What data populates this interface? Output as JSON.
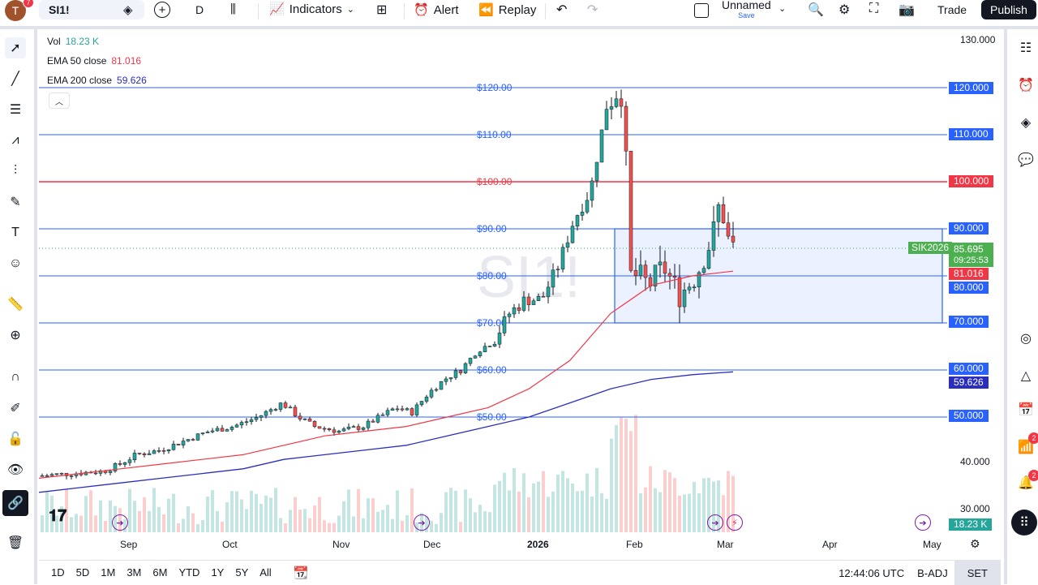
{
  "topbar": {
    "avatar_letter": "T",
    "avatar_badge": "7",
    "symbol": "SI1!",
    "interval": "D",
    "indicators_label": "Indicators",
    "alert_label": "Alert",
    "replay_label": "Replay",
    "layout_name": "Unnamed",
    "layout_save": "Save",
    "trade_label": "Trade",
    "publish_label": "Publish"
  },
  "legend": {
    "vol_label": "Vol",
    "vol_value": "18.23 K",
    "ema50_label": "EMA 50 close",
    "ema50_value": "81.016",
    "ema200_label": "EMA 200 close",
    "ema200_value": "59.626"
  },
  "watermark": "SI1!",
  "price_scale": {
    "ticks": [
      "130.000",
      "40.000",
      "30.000"
    ],
    "marked": [
      {
        "text": "120.000",
        "color": "#2962ff"
      },
      {
        "text": "110.000",
        "color": "#2962ff"
      },
      {
        "text": "100.000",
        "color": "#f23645"
      },
      {
        "text": "90.000",
        "color": "#2962ff"
      },
      {
        "text": "80.000",
        "color": "#2962ff"
      },
      {
        "text": "70.000",
        "color": "#2962ff"
      },
      {
        "text": "60.000",
        "color": "#2962ff"
      },
      {
        "text": "50.000",
        "color": "#2962ff"
      }
    ],
    "last_price": "85.695",
    "countdown": "09:25:53",
    "symbol_tag": "SIK2026",
    "ema50": "81.016",
    "ema200": "59.626",
    "volume": "18.23 K"
  },
  "hlines": [
    {
      "label": "$120.00",
      "price": 120,
      "color": "#2962ff"
    },
    {
      "label": "$110.00",
      "price": 110,
      "color": "#2962ff"
    },
    {
      "label": "$100.00",
      "price": 100,
      "color": "#f23645"
    },
    {
      "label": "$90.00",
      "price": 90,
      "color": "#2962ff"
    },
    {
      "label": "$80.00",
      "price": 80,
      "color": "#2962ff"
    },
    {
      "label": "$70.00",
      "price": 70,
      "color": "#2962ff"
    },
    {
      "label": "$60.00",
      "price": 60,
      "color": "#2962ff"
    },
    {
      "label": "$50.00",
      "price": 50,
      "color": "#2962ff"
    }
  ],
  "range_box": {
    "top": 90,
    "bottom": 70
  },
  "time_axis": [
    "Sep",
    "Oct",
    "Nov",
    "Dec",
    "2026",
    "Feb",
    "Mar",
    "Apr",
    "May"
  ],
  "bottombar": {
    "ranges": [
      "1D",
      "5D",
      "1M",
      "3M",
      "6M",
      "YTD",
      "1Y",
      "5Y",
      "All"
    ],
    "clock": "12:44:06 UTC",
    "adj": "B-ADJ",
    "session": "SET"
  },
  "right_badges": {
    "signals": "2",
    "notifications": "2"
  },
  "colors": {
    "up": "#26a69a",
    "down": "#ef5350",
    "ema50": "#f23645",
    "ema200": "#2a2ebf",
    "line_blue": "#2962ff"
  },
  "chart_data": {
    "type": "line",
    "ylim": [
      30,
      130
    ],
    "series": [
      {
        "name": "EMA 50 close",
        "values": [
          37,
          38,
          39,
          40,
          41,
          42,
          44,
          46,
          47,
          48,
          50,
          52,
          56,
          62,
          72,
          78,
          80,
          81
        ]
      },
      {
        "name": "EMA 200 close",
        "values": [
          34,
          35,
          36,
          37,
          38,
          39,
          41,
          42,
          43,
          44,
          46,
          48,
          50,
          53,
          56,
          58,
          59,
          59.6
        ]
      }
    ]
  }
}
